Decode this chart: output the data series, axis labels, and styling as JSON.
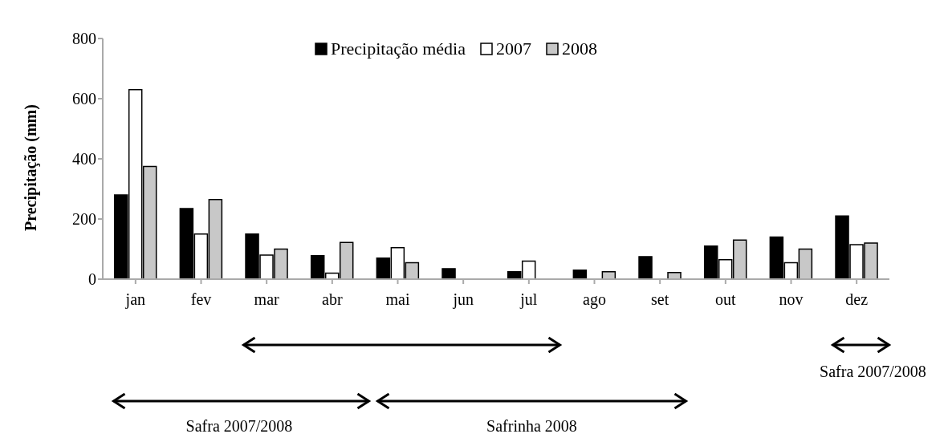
{
  "chart_data": {
    "type": "bar",
    "ylabel": "Precipitação (mm)",
    "categories": [
      "jan",
      "fev",
      "mar",
      "abr",
      "mai",
      "jun",
      "jul",
      "ago",
      "set",
      "out",
      "nov",
      "dez"
    ],
    "series": [
      {
        "name": "Precipitação média",
        "color": "#000000",
        "values": [
          280,
          235,
          150,
          78,
          70,
          35,
          25,
          30,
          75,
          110,
          140,
          210
        ]
      },
      {
        "name": "2007",
        "color": "#ffffff",
        "values": [
          630,
          150,
          80,
          20,
          105,
          0,
          60,
          0,
          0,
          65,
          55,
          115
        ]
      },
      {
        "name": "2008",
        "color": "#c8c8c8",
        "values": [
          375,
          265,
          100,
          122,
          55,
          0,
          0,
          25,
          22,
          130,
          100,
          120
        ]
      }
    ],
    "ylim": [
      0,
      800
    ],
    "yticks": [
      0,
      200,
      400,
      600,
      800
    ],
    "legend": "top",
    "annotations": [
      "Safra 2007/2008",
      "Safrinha 2008",
      "Safra 2007/2008"
    ]
  }
}
